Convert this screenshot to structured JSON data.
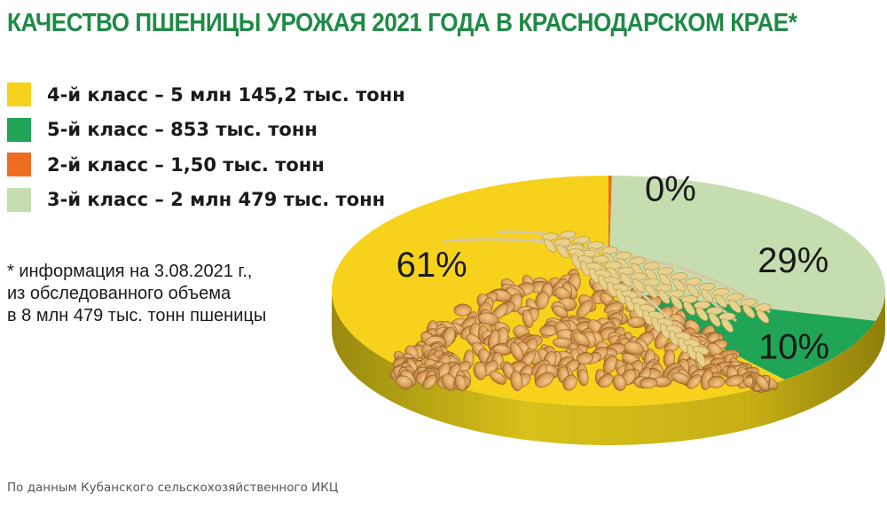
{
  "title": "КАЧЕСТВО ПШЕНИЦЫ УРОЖАЯ 2021 ГОДА В КРАСНОДАРСКОМ КРАЕ*",
  "legend": [
    {
      "label": "4-й класс – 5 млн 145,2 тыс. тонн",
      "color": "#f6d21c"
    },
    {
      "label": "5-й класс – 853 тыс. тонн",
      "color": "#1fa555"
    },
    {
      "label": "2-й класс – 1,50 тыс. тонн",
      "color": "#ef6b1f"
    },
    {
      "label": "3-й класс – 2 млн 479 тыс. тонн",
      "color": "#c6ddb0"
    }
  ],
  "note": [
    "* информация на 3.08.2021 г.,",
    "из обследованного объема",
    "в 8 млн 479 тыс. тонн пшеницы"
  ],
  "source": "По данным Кубанского сельскохозяйственного ИКЦ",
  "chart_data": {
    "type": "pie",
    "slices": [
      {
        "label": "4-й класс",
        "value": 61,
        "display": "61%",
        "color": "#f6d21c"
      },
      {
        "label": "5-й класс",
        "value": 10,
        "display": "10%",
        "color": "#1fa555"
      },
      {
        "label": "2-й класс",
        "value": 0,
        "display": "0%",
        "color": "#ef6b1f"
      },
      {
        "label": "3-й класс",
        "value": 29,
        "display": "29%",
        "color": "#c6ddb0"
      }
    ]
  }
}
